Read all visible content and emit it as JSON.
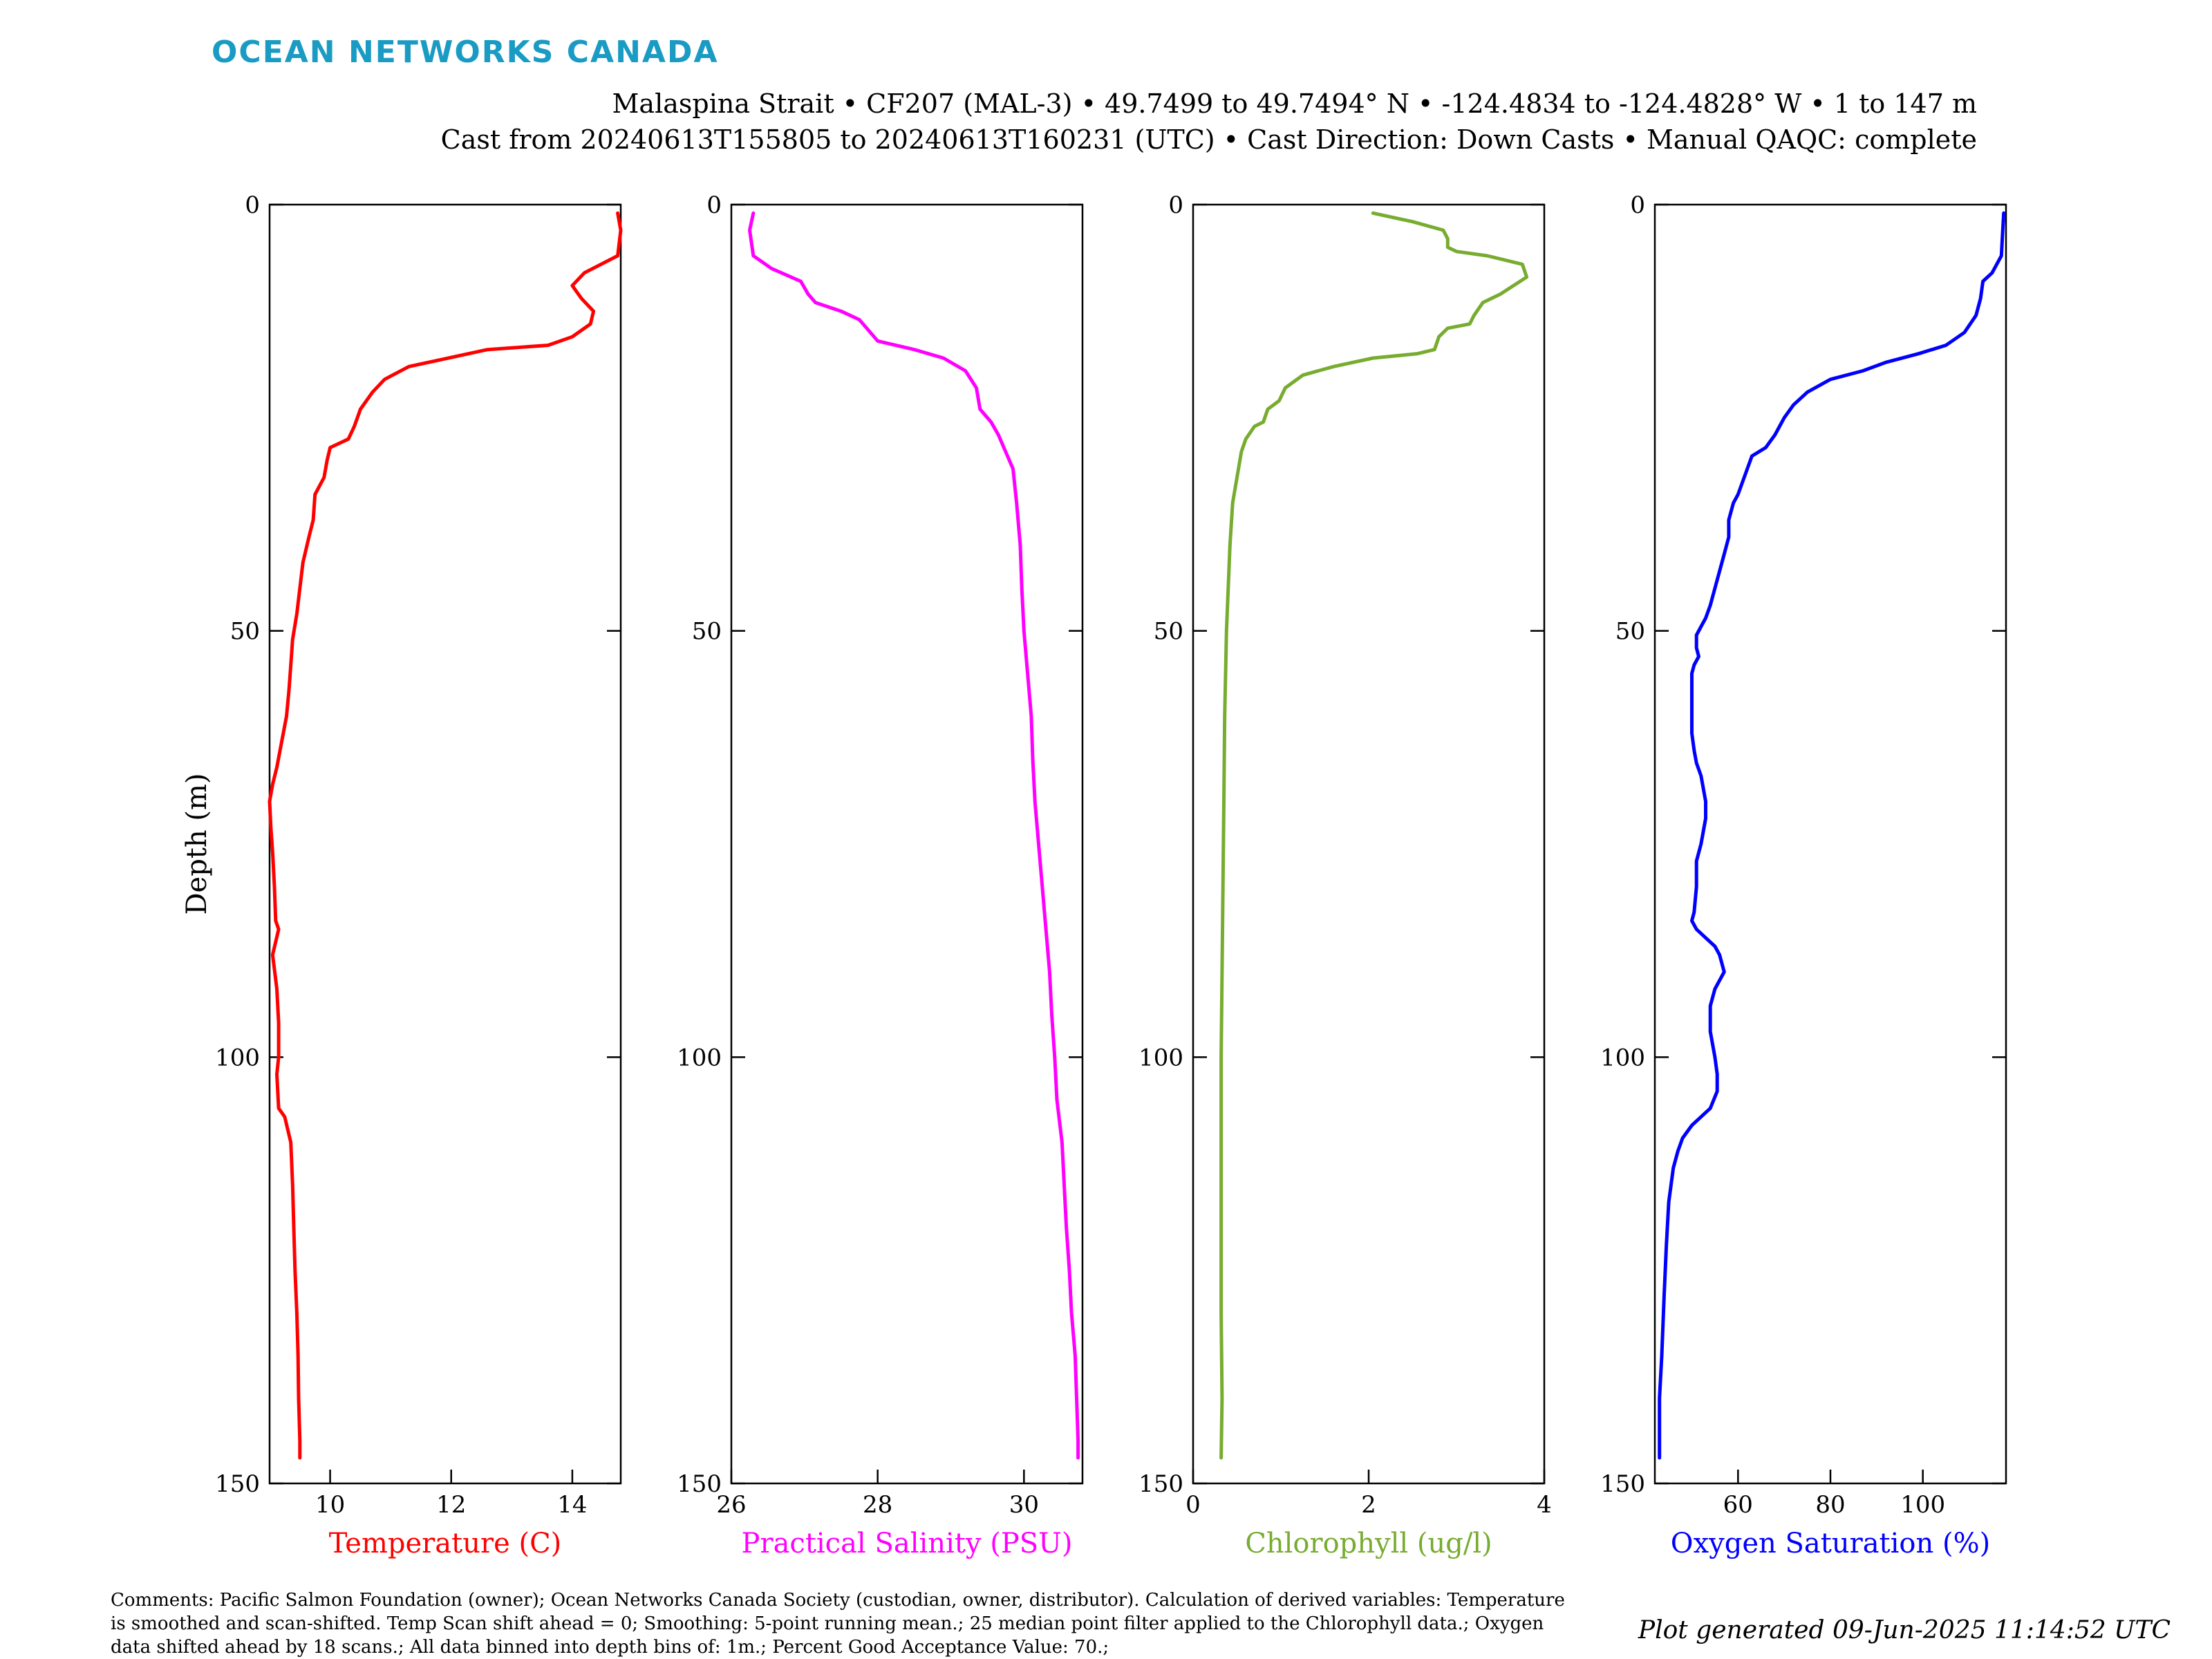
{
  "brand": {
    "logo_text": "OCEAN NETWORKS CANADA",
    "logo_color": "#1a9bc4"
  },
  "header": {
    "title_line1": "Malaspina Strait • CF207 (MAL-3) • 49.7499 to 49.7494° N • -124.4834 to -124.4828° W • 1 to 147 m",
    "title_line2": "Cast from 20240613T155805 to 20240613T160231 (UTC) • Cast Direction: Down Casts • Manual QAQC: complete"
  },
  "footer": {
    "comments": "Comments: Pacific Salmon Foundation (owner); Ocean Networks Canada Society (custodian, owner, distributor). Calculation of derived variables: Temperature is smoothed and scan-shifted. Temp Scan shift ahead = 0; Smoothing: 5-point running mean.; 25 median point filter applied to the Chlorophyll data.; Oxygen data shifted ahead by 18 scans.; All data binned into depth bins of: 1m.; Percent Good Acceptance Value: 70.;",
    "generated": "Plot generated 09-Jun-2025 11:14:52 UTC"
  },
  "chart_data": [
    {
      "type": "line",
      "ylabel": "Depth (m)",
      "ylim": [
        0,
        150
      ],
      "y_reversed": true,
      "yticks": [
        0,
        50,
        100,
        150
      ],
      "xlabel": "Temperature (C)",
      "xlim": [
        9.0,
        14.8
      ],
      "xticks": [
        10,
        12,
        14
      ],
      "color": "#ff0000",
      "points": [
        [
          14.75,
          1
        ],
        [
          14.8,
          3
        ],
        [
          14.75,
          6
        ],
        [
          14.2,
          8
        ],
        [
          14.0,
          9.5
        ],
        [
          14.15,
          11
        ],
        [
          14.35,
          12.5
        ],
        [
          14.3,
          14
        ],
        [
          14.0,
          15.5
        ],
        [
          13.6,
          16.5
        ],
        [
          12.6,
          17
        ],
        [
          11.3,
          19
        ],
        [
          10.9,
          20.5
        ],
        [
          10.7,
          22
        ],
        [
          10.5,
          24
        ],
        [
          10.4,
          26
        ],
        [
          10.3,
          27.5
        ],
        [
          10.0,
          28.5
        ],
        [
          9.95,
          30
        ],
        [
          9.9,
          32
        ],
        [
          9.75,
          34
        ],
        [
          9.72,
          37
        ],
        [
          9.65,
          39
        ],
        [
          9.55,
          42
        ],
        [
          9.5,
          45
        ],
        [
          9.45,
          48
        ],
        [
          9.38,
          51
        ],
        [
          9.35,
          54
        ],
        [
          9.32,
          57
        ],
        [
          9.28,
          60
        ],
        [
          9.2,
          63
        ],
        [
          9.12,
          66
        ],
        [
          9.05,
          68
        ],
        [
          9.0,
          70
        ],
        [
          9.02,
          73
        ],
        [
          9.05,
          76
        ],
        [
          9.08,
          80
        ],
        [
          9.1,
          84
        ],
        [
          9.15,
          85
        ],
        [
          9.05,
          88
        ],
        [
          9.12,
          92
        ],
        [
          9.15,
          96
        ],
        [
          9.15,
          100
        ],
        [
          9.12,
          102
        ],
        [
          9.15,
          106
        ],
        [
          9.25,
          107
        ],
        [
          9.35,
          110
        ],
        [
          9.38,
          115
        ],
        [
          9.4,
          120
        ],
        [
          9.42,
          125
        ],
        [
          9.45,
          130
        ],
        [
          9.47,
          135
        ],
        [
          9.48,
          140
        ],
        [
          9.5,
          145
        ],
        [
          9.5,
          147
        ]
      ]
    },
    {
      "type": "line",
      "xlabel": "Practical Salinity (PSU)",
      "xlim": [
        26,
        30.8
      ],
      "xticks": [
        26,
        28,
        30
      ],
      "color": "#ff00ff",
      "points": [
        [
          26.3,
          1
        ],
        [
          26.25,
          3
        ],
        [
          26.3,
          6
        ],
        [
          26.55,
          7.5
        ],
        [
          26.95,
          9
        ],
        [
          27.05,
          10.5
        ],
        [
          27.15,
          11.5
        ],
        [
          27.5,
          12.5
        ],
        [
          27.75,
          13.5
        ],
        [
          27.85,
          14.5
        ],
        [
          28.0,
          16
        ],
        [
          28.5,
          17
        ],
        [
          28.9,
          18
        ],
        [
          29.2,
          19.5
        ],
        [
          29.35,
          21.5
        ],
        [
          29.4,
          24
        ],
        [
          29.55,
          25.5
        ],
        [
          29.65,
          27
        ],
        [
          29.75,
          29
        ],
        [
          29.85,
          31
        ],
        [
          29.9,
          35
        ],
        [
          29.95,
          40
        ],
        [
          29.97,
          45
        ],
        [
          30.0,
          50
        ],
        [
          30.05,
          55
        ],
        [
          30.1,
          60
        ],
        [
          30.12,
          65
        ],
        [
          30.15,
          70
        ],
        [
          30.2,
          75
        ],
        [
          30.25,
          80
        ],
        [
          30.3,
          85
        ],
        [
          30.35,
          90
        ],
        [
          30.38,
          95
        ],
        [
          30.42,
          100
        ],
        [
          30.45,
          105
        ],
        [
          30.52,
          110
        ],
        [
          30.55,
          115
        ],
        [
          30.58,
          120
        ],
        [
          30.62,
          125
        ],
        [
          30.65,
          130
        ],
        [
          30.7,
          135
        ],
        [
          30.72,
          140
        ],
        [
          30.74,
          145
        ],
        [
          30.74,
          147
        ]
      ]
    },
    {
      "type": "line",
      "xlabel": "Chlorophyll (ug/l)",
      "xlim": [
        0,
        4
      ],
      "xticks": [
        0,
        2,
        4
      ],
      "color": "#77ac30",
      "points": [
        [
          2.05,
          1
        ],
        [
          2.5,
          2
        ],
        [
          2.85,
          3
        ],
        [
          2.9,
          4
        ],
        [
          2.9,
          5
        ],
        [
          3.0,
          5.5
        ],
        [
          3.35,
          6
        ],
        [
          3.75,
          7
        ],
        [
          3.8,
          8.5
        ],
        [
          3.5,
          10.5
        ],
        [
          3.3,
          11.5
        ],
        [
          3.2,
          13
        ],
        [
          3.15,
          14
        ],
        [
          2.9,
          14.5
        ],
        [
          2.8,
          15.5
        ],
        [
          2.75,
          17
        ],
        [
          2.55,
          17.5
        ],
        [
          2.05,
          18
        ],
        [
          1.6,
          19
        ],
        [
          1.25,
          20
        ],
        [
          1.05,
          21.5
        ],
        [
          0.98,
          23
        ],
        [
          0.85,
          24
        ],
        [
          0.8,
          25.5
        ],
        [
          0.7,
          26
        ],
        [
          0.6,
          27.5
        ],
        [
          0.55,
          29
        ],
        [
          0.5,
          32
        ],
        [
          0.45,
          35
        ],
        [
          0.42,
          40
        ],
        [
          0.4,
          45
        ],
        [
          0.38,
          50
        ],
        [
          0.36,
          60
        ],
        [
          0.35,
          70
        ],
        [
          0.34,
          80
        ],
        [
          0.33,
          90
        ],
        [
          0.32,
          100
        ],
        [
          0.32,
          110
        ],
        [
          0.32,
          120
        ],
        [
          0.32,
          130
        ],
        [
          0.33,
          140
        ],
        [
          0.32,
          147
        ]
      ]
    },
    {
      "type": "line",
      "xlabel": "Oxygen Saturation (%)",
      "xlim": [
        42,
        118
      ],
      "xticks": [
        60,
        80,
        100
      ],
      "color": "#0000ff",
      "points": [
        [
          117.5,
          1
        ],
        [
          117.3,
          3
        ],
        [
          117,
          6
        ],
        [
          115,
          8
        ],
        [
          113,
          9
        ],
        [
          112.5,
          11
        ],
        [
          111.5,
          13
        ],
        [
          109,
          15
        ],
        [
          105,
          16.5
        ],
        [
          99,
          17.5
        ],
        [
          92,
          18.5
        ],
        [
          87,
          19.5
        ],
        [
          80,
          20.5
        ],
        [
          75,
          22
        ],
        [
          72,
          23.5
        ],
        [
          70,
          25
        ],
        [
          68,
          27
        ],
        [
          66,
          28.5
        ],
        [
          63,
          29.5
        ],
        [
          62,
          31
        ],
        [
          61,
          32.5
        ],
        [
          60,
          34
        ],
        [
          59,
          35
        ],
        [
          58,
          37
        ],
        [
          58,
          39
        ],
        [
          57,
          41
        ],
        [
          56,
          43
        ],
        [
          55,
          45
        ],
        [
          54,
          47
        ],
        [
          53,
          48.5
        ],
        [
          52,
          49.5
        ],
        [
          51,
          50.5
        ],
        [
          51,
          52
        ],
        [
          51.5,
          53
        ],
        [
          50.5,
          54
        ],
        [
          50,
          55
        ],
        [
          50,
          58
        ],
        [
          50,
          62
        ],
        [
          50.5,
          64
        ],
        [
          51,
          65.5
        ],
        [
          52,
          67
        ],
        [
          53,
          70
        ],
        [
          53,
          72
        ],
        [
          52,
          75
        ],
        [
          51,
          77
        ],
        [
          51,
          80
        ],
        [
          50.5,
          83
        ],
        [
          50,
          84
        ],
        [
          51,
          85
        ],
        [
          53,
          86
        ],
        [
          55,
          87
        ],
        [
          56,
          88
        ],
        [
          57,
          90
        ],
        [
          55,
          92
        ],
        [
          54,
          94
        ],
        [
          54,
          97
        ],
        [
          55,
          100
        ],
        [
          55.5,
          102
        ],
        [
          55.5,
          104
        ],
        [
          54,
          106
        ],
        [
          52,
          107
        ],
        [
          50,
          108
        ],
        [
          48,
          109.5
        ],
        [
          47,
          111
        ],
        [
          46,
          113
        ],
        [
          45,
          117
        ],
        [
          44.5,
          122
        ],
        [
          44,
          128
        ],
        [
          43.5,
          135
        ],
        [
          43,
          140
        ],
        [
          43,
          147
        ]
      ]
    }
  ]
}
